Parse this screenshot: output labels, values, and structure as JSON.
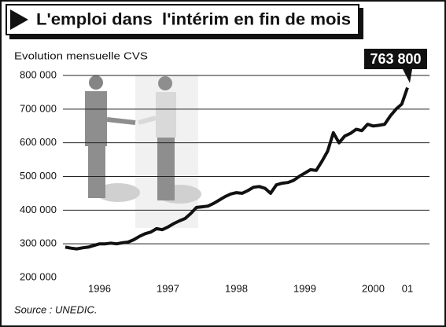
{
  "chart_data": {
    "type": "line",
    "title": "L'emploi dans  l'intérim en fin de mois",
    "subtitle": "Evolution mensuelle CVS",
    "source": "Source : UNEDIC.",
    "categories": [
      null,
      null,
      null,
      null,
      null,
      null,
      "1996",
      null,
      null,
      null,
      null,
      null,
      null,
      null,
      null,
      null,
      null,
      null,
      "1997",
      null,
      null,
      null,
      null,
      null,
      null,
      null,
      null,
      null,
      null,
      null,
      "1998",
      null,
      null,
      null,
      null,
      null,
      null,
      null,
      null,
      null,
      null,
      null,
      "1999",
      null,
      null,
      null,
      null,
      null,
      null,
      null,
      null,
      null,
      null,
      null,
      "2000",
      null,
      null,
      null,
      null,
      null,
      "01"
    ],
    "values": [
      290000,
      287000,
      285000,
      288000,
      290000,
      295000,
      300000,
      300000,
      302000,
      300000,
      303000,
      305000,
      312000,
      322000,
      330000,
      335000,
      345000,
      342000,
      350000,
      360000,
      368000,
      375000,
      390000,
      408000,
      410000,
      412000,
      420000,
      430000,
      440000,
      448000,
      452000,
      450000,
      458000,
      468000,
      470000,
      465000,
      450000,
      475000,
      480000,
      482000,
      488000,
      500000,
      510000,
      520000,
      518000,
      545000,
      575000,
      630000,
      600000,
      620000,
      628000,
      640000,
      636000,
      655000,
      650000,
      652000,
      655000,
      680000,
      700000,
      715000,
      763800
    ],
    "value_labels": [
      null,
      null,
      null,
      null,
      null,
      null,
      null,
      null,
      null,
      null,
      null,
      null,
      null,
      null,
      null,
      null,
      null,
      null,
      null,
      null,
      null,
      null,
      null,
      null,
      null,
      null,
      null,
      null,
      null,
      null,
      null,
      null,
      null,
      null,
      null,
      null,
      null,
      null,
      null,
      null,
      null,
      null,
      null,
      null,
      null,
      null,
      null,
      null,
      null,
      null,
      null,
      null,
      null,
      null,
      null,
      null,
      null,
      null,
      null,
      null,
      "763 800"
    ],
    "color": "#111111",
    "ylim": [
      200000,
      800000
    ],
    "yticks": [
      {
        "value": 200000,
        "label": "200 000"
      },
      {
        "value": 300000,
        "label": "300 000"
      },
      {
        "value": 400000,
        "label": "400 000"
      },
      {
        "value": 500000,
        "label": "500 000"
      },
      {
        "value": 600000,
        "label": "600 000"
      },
      {
        "value": 700000,
        "label": "700 000"
      },
      {
        "value": 800000,
        "label": "800 000"
      }
    ],
    "grid": true
  }
}
